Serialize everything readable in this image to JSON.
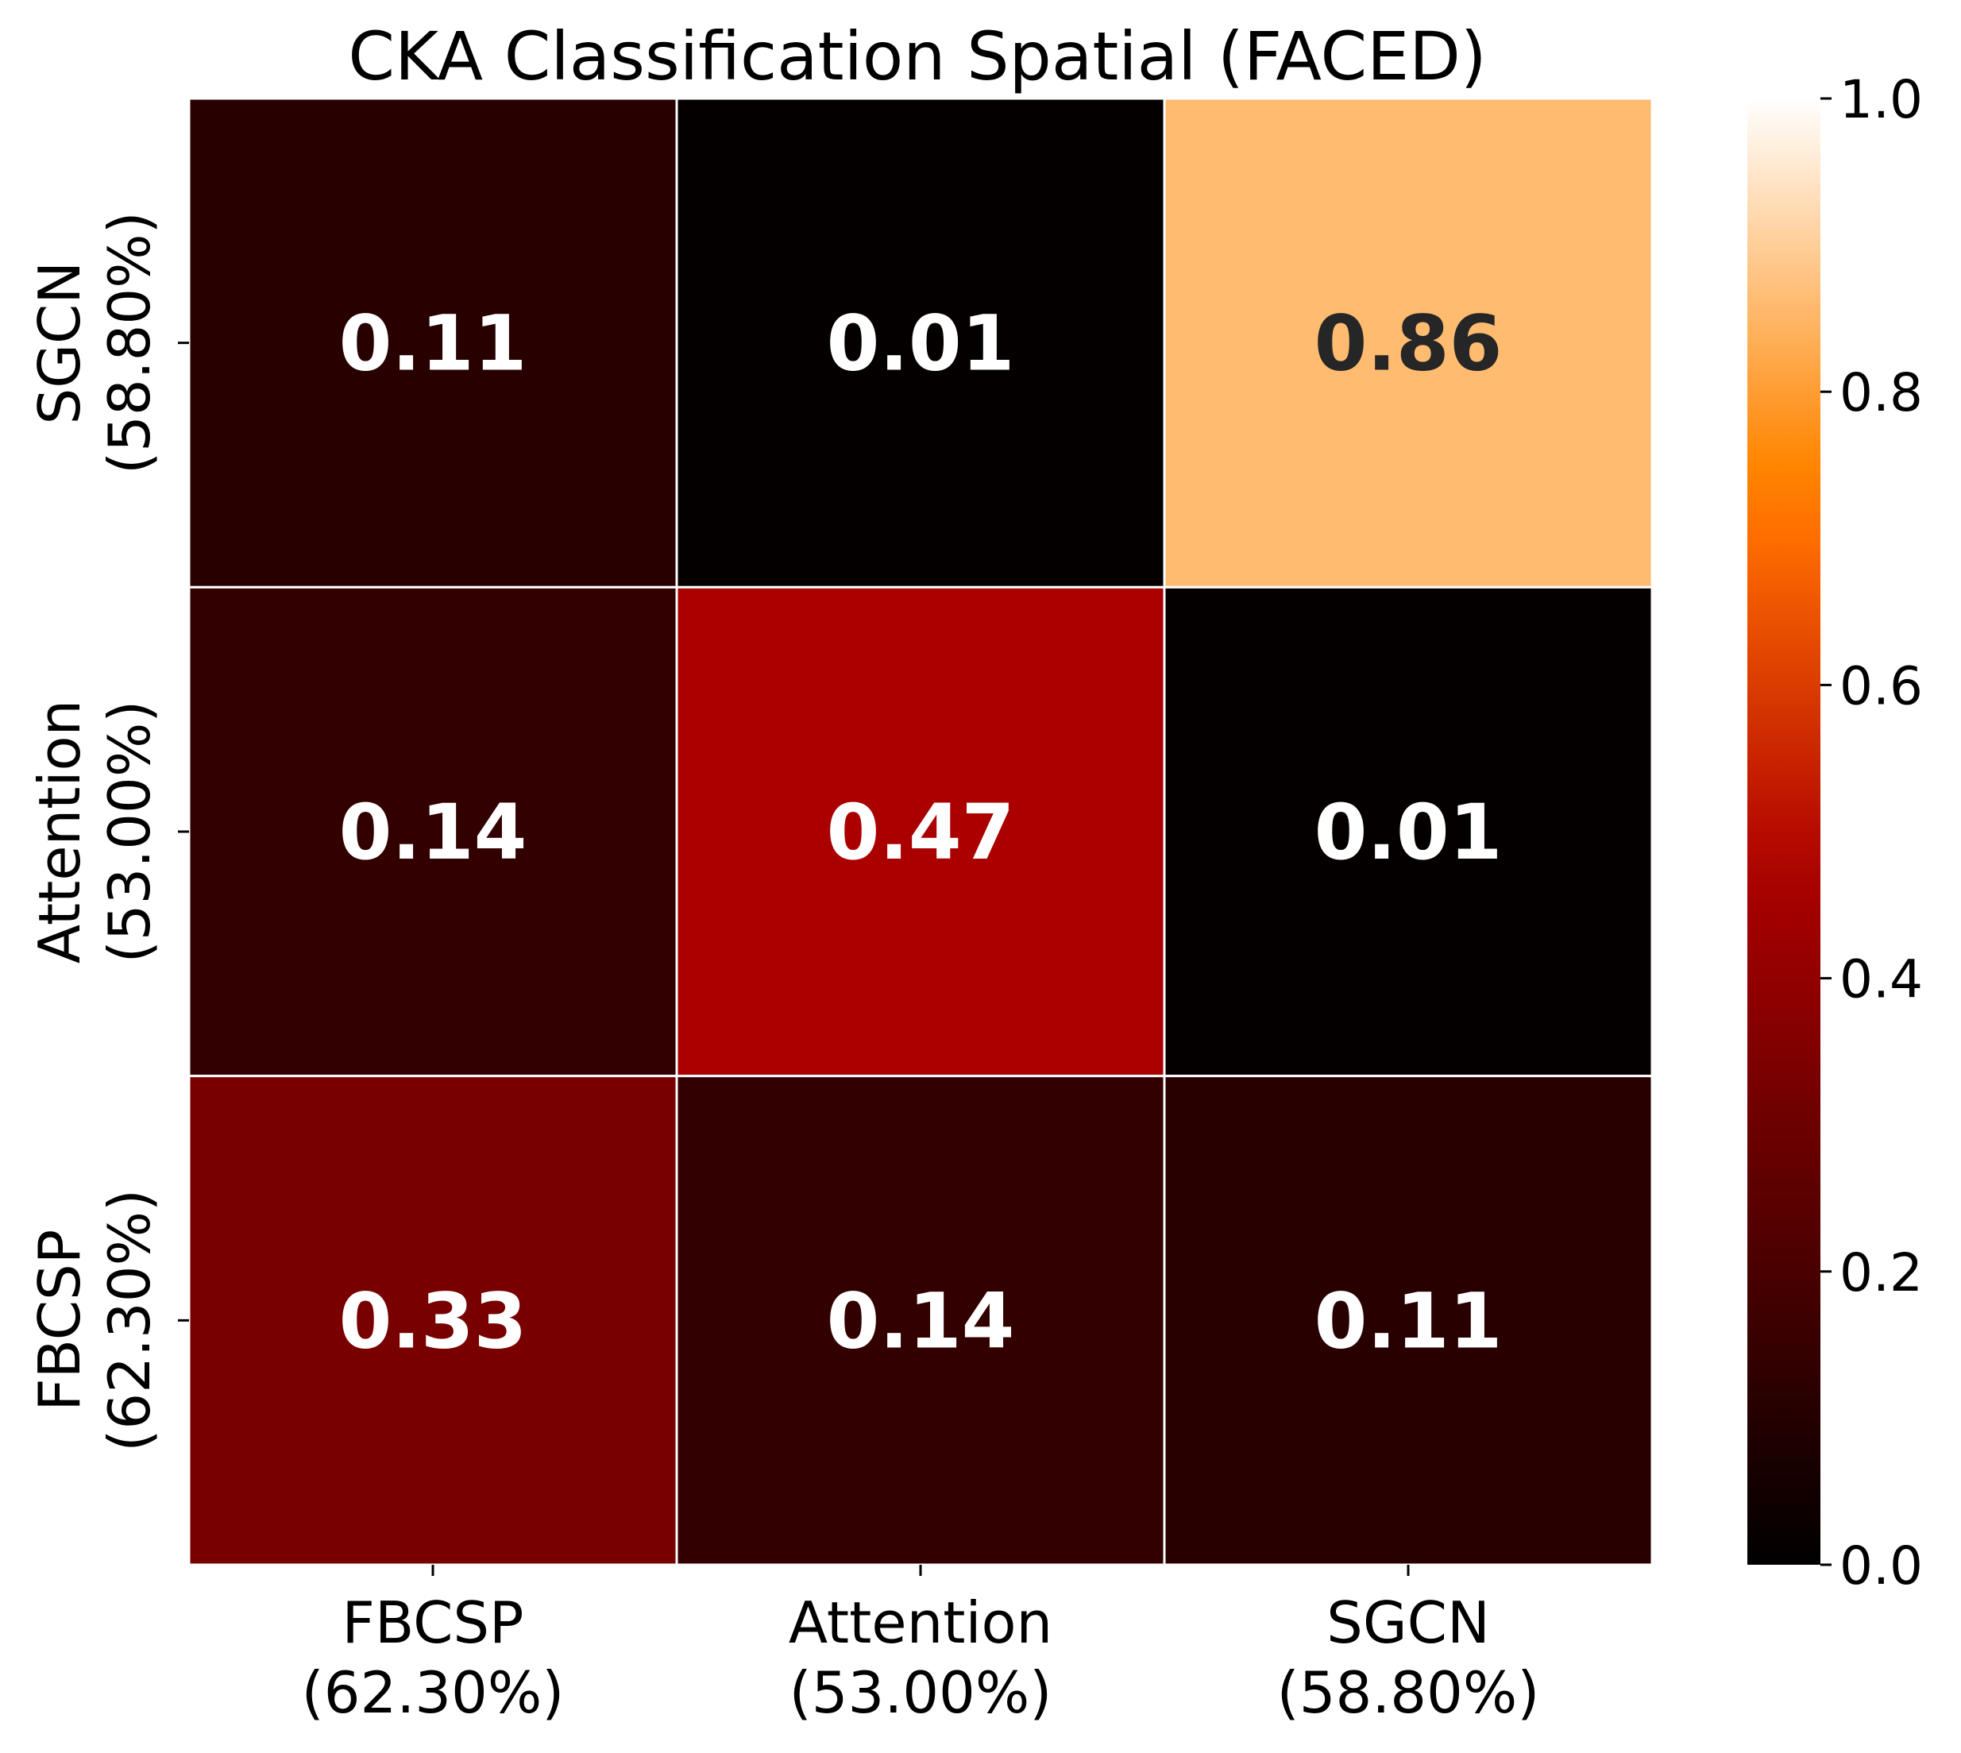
{
  "chart_data": {
    "type": "heatmap",
    "title": "CKA Classification Spatial (FACED)",
    "xlabel": "",
    "ylabel": "",
    "x_categories": [
      [
        "FBCSP",
        "(62.30%)"
      ],
      [
        "Attention",
        "(53.00%)"
      ],
      [
        "SGCN",
        "(58.80%)"
      ]
    ],
    "y_categories": [
      [
        "SGCN",
        "(58.80%)"
      ],
      [
        "Attention",
        "(53.00%)"
      ],
      [
        "FBCSP",
        "(62.30%)"
      ]
    ],
    "values": [
      [
        0.11,
        0.01,
        0.86
      ],
      [
        0.14,
        0.47,
        0.01
      ],
      [
        0.33,
        0.14,
        0.11
      ]
    ],
    "value_labels": [
      [
        "0.11",
        "0.01",
        "0.86"
      ],
      [
        "0.14",
        "0.47",
        "0.01"
      ],
      [
        "0.33",
        "0.14",
        "0.11"
      ]
    ],
    "colormap": "gist_heat",
    "colorbar": {
      "range": [
        0.0,
        1.0
      ],
      "ticks": [
        0.0,
        0.2,
        0.4,
        0.6,
        0.8,
        1.0
      ],
      "tick_labels": [
        "0.0",
        "0.2",
        "0.4",
        "0.6",
        "0.8",
        "1.0"
      ]
    },
    "text_colors": {
      "light": "#ffffff",
      "dark": "#262626"
    },
    "cell_border_color": "#ffffff"
  }
}
